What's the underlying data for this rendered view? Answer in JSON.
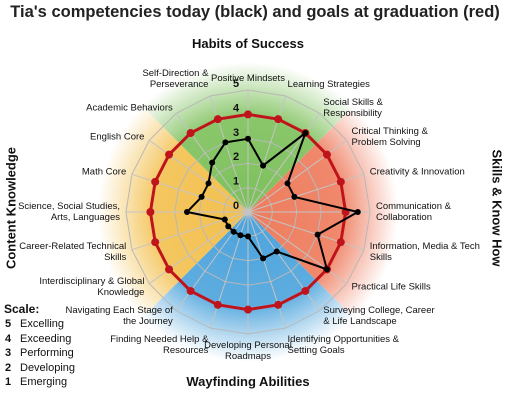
{
  "chart_data": {
    "type": "radar",
    "title": "Tia's competencies today (black) and goals at graduation (red)",
    "categories": [
      "Positive Mindsets",
      "Learning Strategies",
      "Social Skills & Responsibility",
      "Critical Thinking & Problem Solving",
      "Creativity & Innovation",
      "Communication & Collaboration",
      "Information, Media & Tech Skills",
      "Practical Life Skills",
      "Surveying College, Career & Life Landscape",
      "Identifying Opportunities & Setting Goals",
      "Developing Personal Roadmaps",
      "Finding Needed Help & Resources",
      "Navigating Each Stage of the Journey",
      "Interdisciplinary & Global Knowledge",
      "Career-Related Technical Skills",
      "Science, Social Studies, Arts, Languages",
      "Math Core",
      "English Core",
      "Academic Behaviors",
      "Self-Direction & Perseverance"
    ],
    "series": [
      {
        "color": "#c0141c",
        "values": [
          4,
          4,
          4,
          4,
          4,
          4,
          4,
          4,
          4,
          4,
          4,
          4,
          4,
          4,
          4,
          4,
          4,
          4,
          4,
          4
        ]
      },
      {
        "color": "#000000",
        "values": [
          3,
          2,
          4,
          2,
          2,
          4.5,
          3,
          4,
          2,
          2,
          1,
          1,
          1,
          1,
          1,
          2.5,
          2,
          2,
          2.5,
          3
        ]
      }
    ],
    "rlim": [
      0,
      5
    ],
    "rticks": [
      0,
      1,
      2,
      3,
      4,
      5
    ],
    "grid": true,
    "groups": {
      "top": "Habits of Success",
      "right": "Skills & Know How",
      "bottom": "Wayfinding Abilities",
      "left": "Content Knowledge"
    },
    "scale": {
      "title": "Scale:",
      "items": [
        {
          "value": 5,
          "label": "Excelling"
        },
        {
          "value": 4,
          "label": "Exceeding"
        },
        {
          "value": 3,
          "label": "Performing"
        },
        {
          "value": 2,
          "label": "Developing"
        },
        {
          "value": 1,
          "label": "Emerging"
        }
      ]
    }
  }
}
